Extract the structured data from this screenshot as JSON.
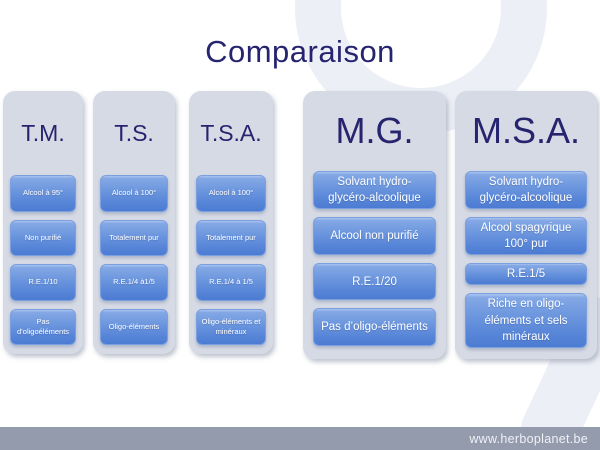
{
  "slide": {
    "title": "Comparaison",
    "footer_url": "www.herboplanet.be"
  },
  "columns": [
    {
      "header": "T.M.",
      "items": [
        "Alcool à 95°",
        "Non purifié",
        "R.E.1/10",
        "Pas d’oligoéléments"
      ]
    },
    {
      "header": "T.S.",
      "items": [
        "Alcool à 100°",
        "Totalement pur",
        "R.E.1/4 à1/5",
        "Oligo-éléments"
      ]
    },
    {
      "header": "T.S.A.",
      "items": [
        "Alcool à 100°",
        "Totalement pur",
        "R.E.1/4 à 1/5",
        "Oligo-éléments et minéraux"
      ]
    },
    {
      "header": "M.G.",
      "items": [
        "Solvant hydro-glycéro-alcoolique",
        "Alcool non purifié",
        "R.E.1/20",
        "Pas d’oligo-éléments"
      ]
    },
    {
      "header": "M.S.A.",
      "items": [
        "Solvant hydro-glycéro-alcoolique",
        "Alcool spagyrique 100° pur",
        "R.E.1/5",
        "Riche en oligo-éléments et sels minéraux"
      ]
    }
  ],
  "colors": {
    "title_navy": "#26246f",
    "column_bg": "#d6dae4",
    "box_blue_top": "#84a8e5",
    "box_blue_bottom": "#4c7cd2",
    "footer_bar": "#949bac",
    "watermark": "#edeff6"
  }
}
